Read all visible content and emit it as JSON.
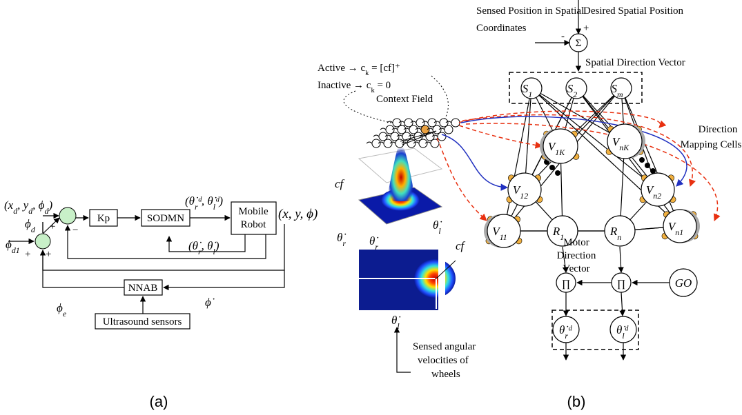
{
  "panel_a": {
    "desired_input": [
      "(x",
      "d",
      ", y",
      "d",
      ", ϕ",
      "d",
      ")"
    ],
    "phi_d": [
      "ϕ",
      "d"
    ],
    "phi_d1": [
      "ϕ",
      "d1"
    ],
    "plus": "+",
    "minus": "−",
    "kp": "Kp",
    "sodmn": "SODMN",
    "desired_wheel": [
      "(θ̇",
      "r",
      "ᵈ, θ̇",
      "l",
      "ᵈ)"
    ],
    "mobile_robot": [
      "Mobile",
      "Robot"
    ],
    "output": "(x, y, ϕ)",
    "sensed_wheel": [
      "(θ̇",
      "r",
      ", θ̇",
      "l",
      ")"
    ],
    "nnab": "NNAB",
    "phi_e": [
      "ϕ",
      "e"
    ],
    "phi_dot": "ϕ̇",
    "ultrasound": "Ultrasound sensors",
    "caption": "(a)"
  },
  "panel_b": {
    "active": [
      "Active → c",
      "k",
      " = [cf]⁺"
    ],
    "inactive": [
      "Inactive → c",
      "k",
      " = 0"
    ],
    "context_field": "Context Field",
    "cf": "cf",
    "theta_r": [
      "θ̇",
      "r"
    ],
    "theta_l": [
      "θ̇",
      "l"
    ],
    "sensed_angular": [
      "Sensed angular",
      "velocities of",
      "wheels"
    ],
    "sensed_position": [
      "Sensed Position in Spatial",
      "Coordinates"
    ],
    "desired_position": "Desired Spatial Position",
    "sigma": "Σ",
    "minus": "-",
    "plus": "+",
    "spatial_direction": "Spatial Direction Vector",
    "s1": [
      "S",
      "1"
    ],
    "s2": [
      "S",
      "2"
    ],
    "sm": [
      "S",
      "m"
    ],
    "v1k": [
      "V",
      "1K"
    ],
    "vnk": [
      "V",
      "nK"
    ],
    "v12": [
      "V",
      "12"
    ],
    "vn2": [
      "V",
      "n2"
    ],
    "v11": [
      "V",
      "11"
    ],
    "r1": [
      "R",
      "1"
    ],
    "rn": [
      "R",
      "n"
    ],
    "vn1": [
      "V",
      "n1"
    ],
    "direction_mapping": [
      "Direction",
      "Mapping Cells"
    ],
    "motor_direction": [
      "Motor",
      "Direction",
      "Vector"
    ],
    "pi": "∏",
    "go": "GO",
    "out_r": [
      "θ̇",
      "r",
      "ᵈ"
    ],
    "out_l": [
      "θ̇",
      "l",
      "ᵈ"
    ],
    "caption": "(b)"
  }
}
